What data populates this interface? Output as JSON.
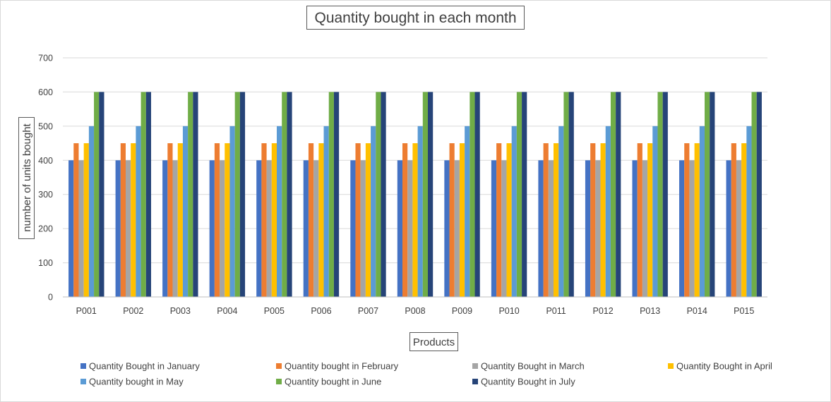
{
  "chart_data": {
    "type": "bar",
    "title": "Quantity bought in each month",
    "xlabel": "Products",
    "ylabel": "number of units bought",
    "ylim": [
      0,
      700
    ],
    "yticks": [
      0,
      100,
      200,
      300,
      400,
      500,
      600,
      700
    ],
    "grid": true,
    "legend_position": "bottom",
    "categories": [
      "P001",
      "P002",
      "P003",
      "P004",
      "P005",
      "P006",
      "P007",
      "P008",
      "P009",
      "P010",
      "P011",
      "P012",
      "P013",
      "P014",
      "P015"
    ],
    "series": [
      {
        "name": "Quantity Bought in January",
        "color": "#4472C4",
        "values": [
          400,
          400,
          400,
          400,
          400,
          400,
          400,
          400,
          400,
          400,
          400,
          400,
          400,
          400,
          400
        ]
      },
      {
        "name": "Quantity bought in February",
        "color": "#ED7D31",
        "values": [
          450,
          450,
          450,
          450,
          450,
          450,
          450,
          450,
          450,
          450,
          450,
          450,
          450,
          450,
          450
        ]
      },
      {
        "name": "Quantity Bought in March",
        "color": "#A5A5A5",
        "values": [
          400,
          400,
          400,
          400,
          400,
          400,
          400,
          400,
          400,
          400,
          400,
          400,
          400,
          400,
          400
        ]
      },
      {
        "name": "Quantity Bought in April",
        "color": "#FFC000",
        "values": [
          450,
          450,
          450,
          450,
          450,
          450,
          450,
          450,
          450,
          450,
          450,
          450,
          450,
          450,
          450
        ]
      },
      {
        "name": "Quantity bought in May",
        "color": "#5B9BD5",
        "values": [
          500,
          500,
          500,
          500,
          500,
          500,
          500,
          500,
          500,
          500,
          500,
          500,
          500,
          500,
          500
        ]
      },
      {
        "name": "Quantity bought in June",
        "color": "#70AD47",
        "values": [
          600,
          600,
          600,
          600,
          600,
          600,
          600,
          600,
          600,
          600,
          600,
          600,
          600,
          600,
          600
        ]
      },
      {
        "name": "Quantity Bought in July",
        "color": "#264478",
        "values": [
          600,
          600,
          600,
          600,
          600,
          600,
          600,
          600,
          600,
          600,
          600,
          600,
          600,
          600,
          600
        ]
      }
    ]
  }
}
